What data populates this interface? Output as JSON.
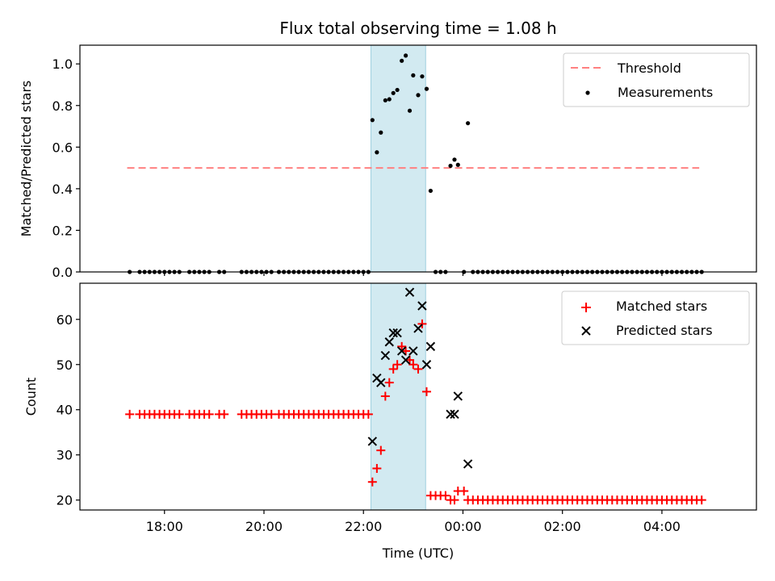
{
  "chart_data": [
    {
      "type": "scatter",
      "title": "Flux total observing time = 1.08 h",
      "ylabel": "Matched/Predicted stars",
      "xlabel": "",
      "ylim": [
        0.0,
        1.09
      ],
      "xlim_hours": [
        16.3,
        29.9
      ],
      "yticks": [
        0.0,
        0.2,
        0.4,
        0.6,
        0.8,
        1.0
      ],
      "ytick_labels": [
        "0.0",
        "0.2",
        "0.4",
        "0.6",
        "0.8",
        "1.0"
      ],
      "highlight_span_hours": [
        22.15,
        23.25
      ],
      "threshold": {
        "name": "Threshold",
        "value": 0.5,
        "x_range_hours": [
          17.25,
          28.75
        ],
        "color": "#ff8080"
      },
      "legend": {
        "position": "top-right",
        "entries": [
          "Threshold",
          "Measurements"
        ]
      },
      "series": [
        {
          "name": "Measurements",
          "color": "#000000",
          "points": [
            [
              17.3,
              0
            ],
            [
              17.5,
              0
            ],
            [
              17.6,
              0
            ],
            [
              17.7,
              0
            ],
            [
              17.8,
              0
            ],
            [
              17.9,
              0
            ],
            [
              18.0,
              0
            ],
            [
              18.1,
              0
            ],
            [
              18.2,
              0
            ],
            [
              18.3,
              0
            ],
            [
              18.5,
              0
            ],
            [
              18.6,
              0
            ],
            [
              18.7,
              0
            ],
            [
              18.8,
              0
            ],
            [
              18.9,
              0
            ],
            [
              19.1,
              0
            ],
            [
              19.2,
              0
            ],
            [
              19.55,
              0
            ],
            [
              19.65,
              0
            ],
            [
              19.75,
              0
            ],
            [
              19.85,
              0
            ],
            [
              19.95,
              0
            ],
            [
              20.05,
              0
            ],
            [
              20.15,
              0
            ],
            [
              20.3,
              0
            ],
            [
              20.4,
              0
            ],
            [
              20.5,
              0
            ],
            [
              20.6,
              0
            ],
            [
              20.7,
              0
            ],
            [
              20.8,
              0
            ],
            [
              20.9,
              0
            ],
            [
              21.0,
              0
            ],
            [
              21.1,
              0
            ],
            [
              21.2,
              0
            ],
            [
              21.3,
              0
            ],
            [
              21.4,
              0
            ],
            [
              21.5,
              0
            ],
            [
              21.6,
              0
            ],
            [
              21.7,
              0
            ],
            [
              21.8,
              0
            ],
            [
              21.9,
              0
            ],
            [
              22.0,
              0
            ],
            [
              22.1,
              0
            ],
            [
              22.18,
              0.73
            ],
            [
              22.27,
              0.575
            ],
            [
              22.35,
              0.67
            ],
            [
              22.44,
              0.825
            ],
            [
              22.52,
              0.83
            ],
            [
              22.6,
              0.86
            ],
            [
              22.68,
              0.875
            ],
            [
              22.77,
              1.015
            ],
            [
              22.85,
              1.04
            ],
            [
              22.93,
              0.775
            ],
            [
              23.0,
              0.945
            ],
            [
              23.1,
              0.85
            ],
            [
              23.18,
              0.94
            ],
            [
              23.27,
              0.88
            ],
            [
              23.35,
              0.39
            ],
            [
              23.45,
              0
            ],
            [
              23.55,
              0
            ],
            [
              23.65,
              0
            ],
            [
              23.75,
              0.51
            ],
            [
              23.83,
              0.54
            ],
            [
              23.9,
              0.515
            ],
            [
              24.02,
              0
            ],
            [
              24.1,
              0.715
            ],
            [
              24.2,
              0
            ],
            [
              24.3,
              0
            ],
            [
              24.4,
              0
            ],
            [
              24.5,
              0
            ],
            [
              24.6,
              0
            ],
            [
              24.7,
              0
            ],
            [
              24.8,
              0
            ],
            [
              24.9,
              0
            ],
            [
              25.0,
              0
            ],
            [
              25.1,
              0
            ],
            [
              25.2,
              0
            ],
            [
              25.3,
              0
            ],
            [
              25.4,
              0
            ],
            [
              25.5,
              0
            ],
            [
              25.6,
              0
            ],
            [
              25.7,
              0
            ],
            [
              25.8,
              0
            ],
            [
              25.9,
              0
            ],
            [
              26.0,
              0
            ],
            [
              26.1,
              0
            ],
            [
              26.2,
              0
            ],
            [
              26.3,
              0
            ],
            [
              26.4,
              0
            ],
            [
              26.5,
              0
            ],
            [
              26.6,
              0
            ],
            [
              26.7,
              0
            ],
            [
              26.8,
              0
            ],
            [
              26.9,
              0
            ],
            [
              27.0,
              0
            ],
            [
              27.1,
              0
            ],
            [
              27.2,
              0
            ],
            [
              27.3,
              0
            ],
            [
              27.4,
              0
            ],
            [
              27.5,
              0
            ],
            [
              27.6,
              0
            ],
            [
              27.7,
              0
            ],
            [
              27.8,
              0
            ],
            [
              27.9,
              0
            ],
            [
              28.0,
              0
            ],
            [
              28.1,
              0
            ],
            [
              28.2,
              0
            ],
            [
              28.3,
              0
            ],
            [
              28.4,
              0
            ],
            [
              28.5,
              0
            ],
            [
              28.6,
              0
            ],
            [
              28.7,
              0
            ],
            [
              28.8,
              0
            ]
          ]
        }
      ]
    },
    {
      "type": "scatter",
      "title": "",
      "xlabel": "Time (UTC)",
      "ylabel": "Count",
      "ylim": [
        17.8,
        68.0
      ],
      "xlim_hours": [
        16.3,
        29.9
      ],
      "yticks": [
        20,
        30,
        40,
        50,
        60
      ],
      "ytick_labels": [
        "20",
        "30",
        "40",
        "50",
        "60"
      ],
      "xticks_hours": [
        18,
        20,
        22,
        24,
        26,
        28
      ],
      "xtick_labels": [
        "18:00",
        "20:00",
        "22:00",
        "00:00",
        "02:00",
        "04:00"
      ],
      "highlight_span_hours": [
        22.15,
        23.25
      ],
      "legend": {
        "position": "top-right",
        "entries": [
          "Matched stars",
          "Predicted stars"
        ]
      },
      "series": [
        {
          "name": "Matched stars",
          "color": "#ff0000",
          "marker": "plus",
          "points": [
            [
              17.3,
              39
            ],
            [
              17.5,
              39
            ],
            [
              17.6,
              39
            ],
            [
              17.7,
              39
            ],
            [
              17.8,
              39
            ],
            [
              17.9,
              39
            ],
            [
              18.0,
              39
            ],
            [
              18.1,
              39
            ],
            [
              18.2,
              39
            ],
            [
              18.3,
              39
            ],
            [
              18.5,
              39
            ],
            [
              18.6,
              39
            ],
            [
              18.7,
              39
            ],
            [
              18.8,
              39
            ],
            [
              18.9,
              39
            ],
            [
              19.1,
              39
            ],
            [
              19.2,
              39
            ],
            [
              19.55,
              39
            ],
            [
              19.65,
              39
            ],
            [
              19.75,
              39
            ],
            [
              19.85,
              39
            ],
            [
              19.95,
              39
            ],
            [
              20.05,
              39
            ],
            [
              20.15,
              39
            ],
            [
              20.3,
              39
            ],
            [
              20.4,
              39
            ],
            [
              20.5,
              39
            ],
            [
              20.6,
              39
            ],
            [
              20.7,
              39
            ],
            [
              20.8,
              39
            ],
            [
              20.9,
              39
            ],
            [
              21.0,
              39
            ],
            [
              21.1,
              39
            ],
            [
              21.2,
              39
            ],
            [
              21.3,
              39
            ],
            [
              21.4,
              39
            ],
            [
              21.5,
              39
            ],
            [
              21.6,
              39
            ],
            [
              21.7,
              39
            ],
            [
              21.8,
              39
            ],
            [
              21.9,
              39
            ],
            [
              22.0,
              39
            ],
            [
              22.1,
              39
            ],
            [
              22.18,
              24
            ],
            [
              22.27,
              27
            ],
            [
              22.35,
              31
            ],
            [
              22.44,
              43
            ],
            [
              22.52,
              46
            ],
            [
              22.6,
              49
            ],
            [
              22.68,
              50
            ],
            [
              22.77,
              54
            ],
            [
              22.85,
              53
            ],
            [
              22.93,
              51
            ],
            [
              23.0,
              50
            ],
            [
              23.1,
              49
            ],
            [
              23.18,
              59
            ],
            [
              23.27,
              44
            ],
            [
              23.35,
              21
            ],
            [
              23.45,
              21
            ],
            [
              23.55,
              21
            ],
            [
              23.65,
              21
            ],
            [
              23.75,
              20
            ],
            [
              23.83,
              20
            ],
            [
              23.9,
              22
            ],
            [
              24.02,
              22
            ],
            [
              24.1,
              20
            ],
            [
              24.2,
              20
            ],
            [
              24.3,
              20
            ],
            [
              24.4,
              20
            ],
            [
              24.5,
              20
            ],
            [
              24.6,
              20
            ],
            [
              24.7,
              20
            ],
            [
              24.8,
              20
            ],
            [
              24.9,
              20
            ],
            [
              25.0,
              20
            ],
            [
              25.1,
              20
            ],
            [
              25.2,
              20
            ],
            [
              25.3,
              20
            ],
            [
              25.4,
              20
            ],
            [
              25.5,
              20
            ],
            [
              25.6,
              20
            ],
            [
              25.7,
              20
            ],
            [
              25.8,
              20
            ],
            [
              25.9,
              20
            ],
            [
              26.0,
              20
            ],
            [
              26.1,
              20
            ],
            [
              26.2,
              20
            ],
            [
              26.3,
              20
            ],
            [
              26.4,
              20
            ],
            [
              26.5,
              20
            ],
            [
              26.6,
              20
            ],
            [
              26.7,
              20
            ],
            [
              26.8,
              20
            ],
            [
              26.9,
              20
            ],
            [
              27.0,
              20
            ],
            [
              27.1,
              20
            ],
            [
              27.2,
              20
            ],
            [
              27.3,
              20
            ],
            [
              27.4,
              20
            ],
            [
              27.5,
              20
            ],
            [
              27.6,
              20
            ],
            [
              27.7,
              20
            ],
            [
              27.8,
              20
            ],
            [
              27.9,
              20
            ],
            [
              28.0,
              20
            ],
            [
              28.1,
              20
            ],
            [
              28.2,
              20
            ],
            [
              28.3,
              20
            ],
            [
              28.4,
              20
            ],
            [
              28.5,
              20
            ],
            [
              28.6,
              20
            ],
            [
              28.7,
              20
            ],
            [
              28.8,
              20
            ]
          ]
        },
        {
          "name": "Predicted stars",
          "color": "#000000",
          "marker": "x",
          "points": [
            [
              22.18,
              33
            ],
            [
              22.27,
              47
            ],
            [
              22.35,
              46
            ],
            [
              22.44,
              52
            ],
            [
              22.52,
              55
            ],
            [
              22.6,
              57
            ],
            [
              22.68,
              57
            ],
            [
              22.77,
              53
            ],
            [
              22.85,
              51
            ],
            [
              22.93,
              66
            ],
            [
              23.0,
              53
            ],
            [
              23.1,
              58
            ],
            [
              23.18,
              63
            ],
            [
              23.27,
              50
            ],
            [
              23.35,
              54
            ],
            [
              23.75,
              39
            ],
            [
              23.83,
              39
            ],
            [
              23.9,
              43
            ],
            [
              24.1,
              28
            ]
          ]
        }
      ]
    }
  ]
}
